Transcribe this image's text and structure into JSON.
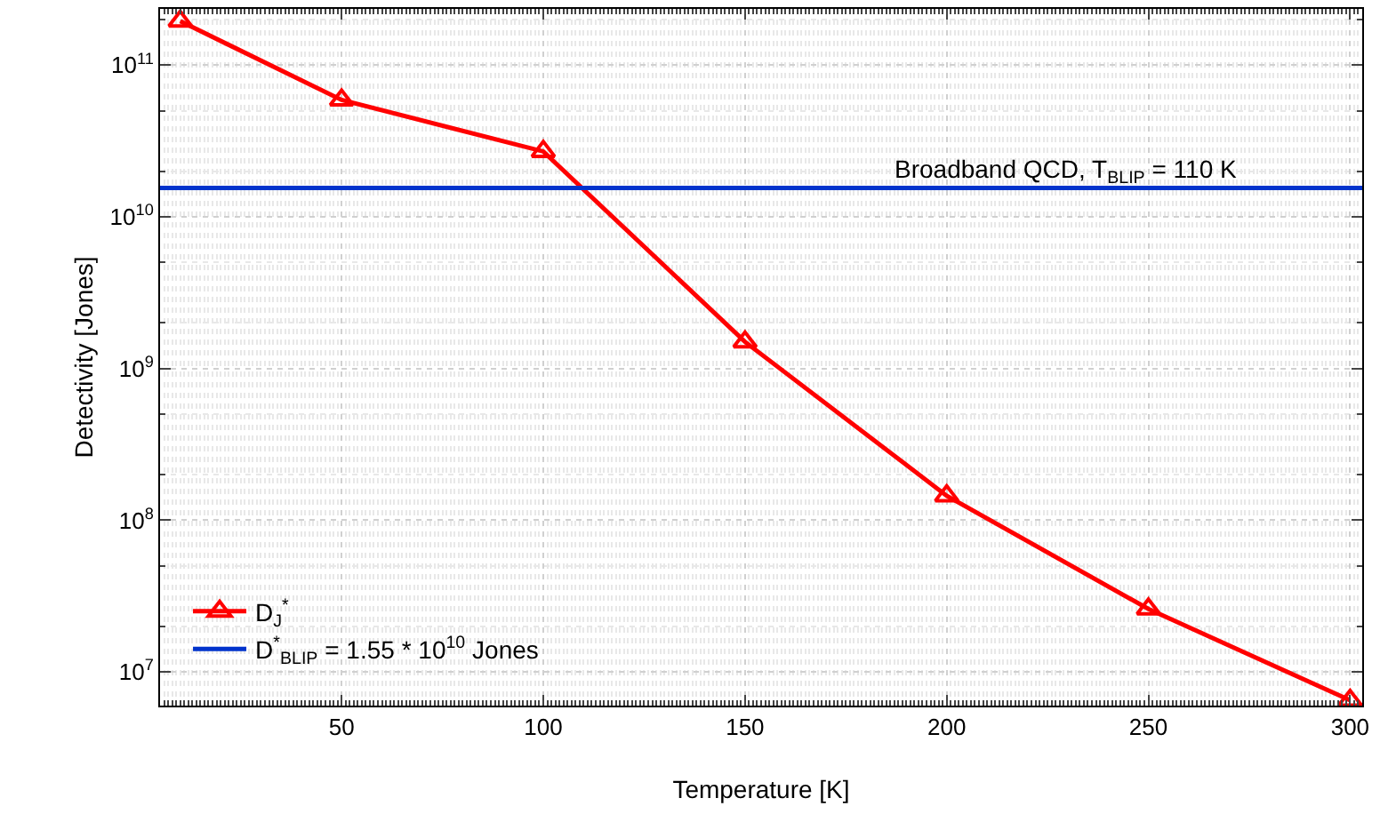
{
  "chart_data": {
    "type": "line",
    "xlabel": "Temperature [K]",
    "ylabel": "Detectivity [Jones]",
    "x": [
      10,
      50,
      100,
      150,
      200,
      250,
      300
    ],
    "series": [
      {
        "name": "D$_{J}$$^{*}$",
        "color": "#ff0000",
        "values": [
          195000000000.0,
          59000000000.0,
          27000000000.0,
          1500000000.0,
          145000000.0,
          26000000.0,
          6500000.0
        ],
        "marker": "triangle"
      },
      {
        "name": "D$^{*}$$_{BLIP}$ = 1.55 * 10$^{10}$ Jones",
        "color": "#0033cc",
        "x": [
          5,
          303
        ],
        "values": [
          15500000000.0,
          15500000000.0
        ],
        "marker": "none"
      }
    ],
    "annotations": [
      "Broadband QCD, T$_{BLIP}$ = 110 K"
    ],
    "xlim": [
      5,
      303
    ],
    "ylim": [
      6000000.0,
      235000000000.0
    ],
    "log": "y",
    "xticks": [
      50,
      100,
      150,
      200,
      250,
      300
    ],
    "yticks": [
      {
        "value": 10000000.0,
        "label": "10$^{7}$"
      },
      {
        "value": 100000000.0,
        "label": "10$^{8}$"
      },
      {
        "value": 1000000000.0,
        "label": "10$^{9}$"
      },
      {
        "value": 10000000000.0,
        "label": "10$^{10}$"
      },
      {
        "value": 100000000000.0,
        "label": "10$^{11}$"
      }
    ],
    "grid": true,
    "legend": "bottom left",
    "line_style": "solid"
  }
}
